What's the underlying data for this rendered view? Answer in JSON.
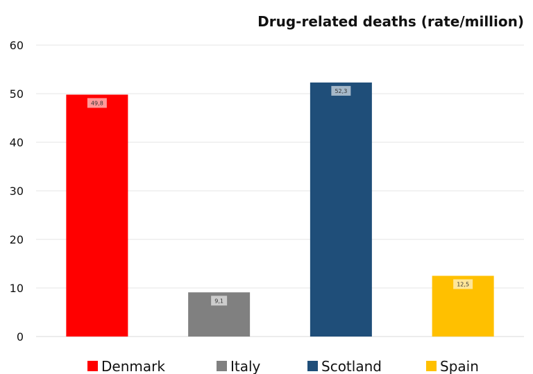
{
  "chart_data": {
    "type": "bar",
    "title": "Drug-related deaths (rate/million)",
    "categories": [
      "Denmark",
      "Italy",
      "Scotland",
      "Spain"
    ],
    "values": [
      49.8,
      9.1,
      52.3,
      12.5
    ],
    "value_labels": [
      "49,8",
      "9,1",
      "52,3",
      "12,5"
    ],
    "colors": [
      "#ff0000",
      "#808080",
      "#1f4e79",
      "#ffc000"
    ],
    "ylim": [
      0,
      60
    ],
    "yticks": [
      "0",
      "10",
      "20",
      "30",
      "40",
      "50",
      "60"
    ],
    "xlabel": "",
    "ylabel": "",
    "grid": true,
    "legend_position": "bottom"
  }
}
